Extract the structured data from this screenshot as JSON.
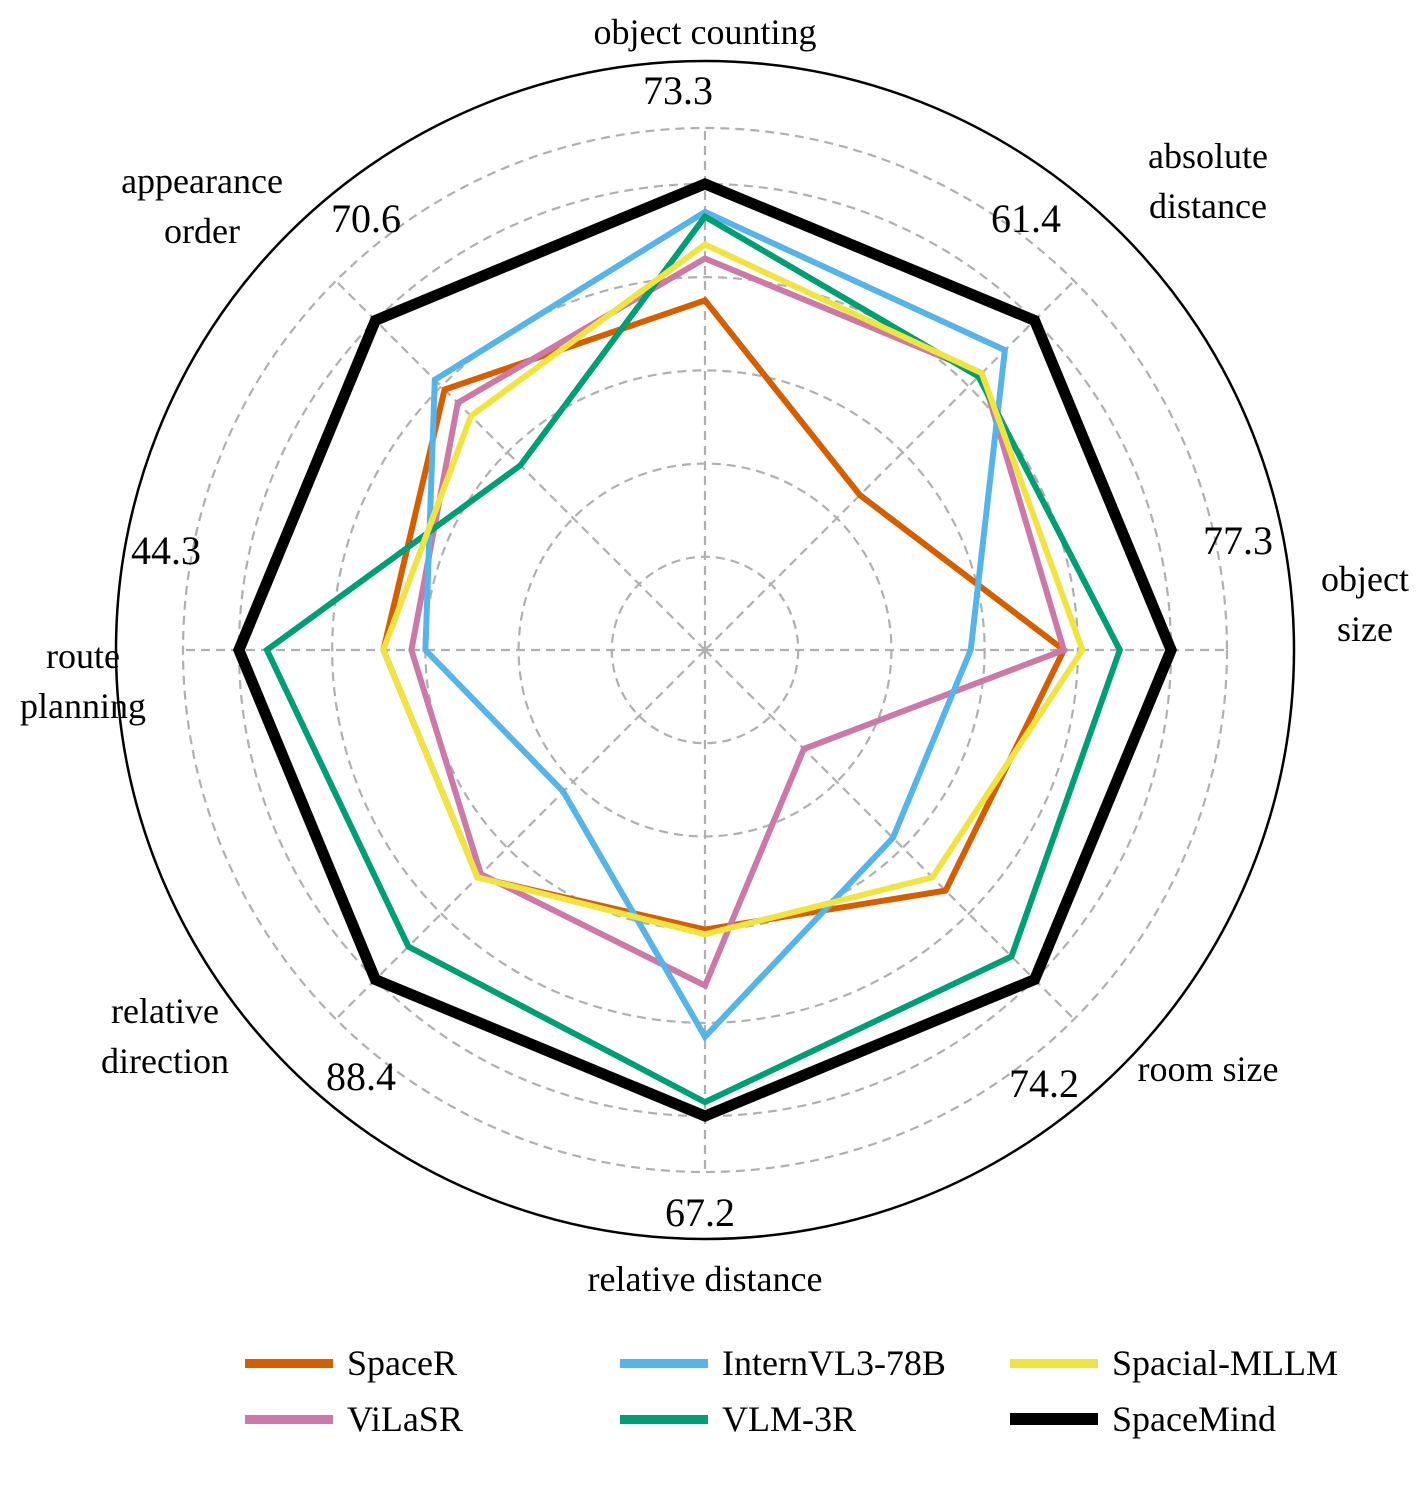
{
  "chart_data": {
    "type": "radar",
    "axes": [
      {
        "name": "object counting",
        "lines": [
          "object counting"
        ],
        "peak": "73.3"
      },
      {
        "name": "absolute distance",
        "lines": [
          "absolute",
          "distance"
        ],
        "peak": "61.4"
      },
      {
        "name": "object size",
        "lines": [
          "object",
          "size"
        ],
        "peak": "77.3"
      },
      {
        "name": "room size",
        "lines": [
          "room size"
        ],
        "peak": "74.2"
      },
      {
        "name": "relative distance",
        "lines": [
          "relative distance"
        ],
        "peak": "67.2"
      },
      {
        "name": "relative direction",
        "lines": [
          "relative",
          "direction"
        ],
        "peak": "88.4"
      },
      {
        "name": "route planning",
        "lines": [
          "route",
          "planning"
        ],
        "peak": "44.3"
      },
      {
        "name": "appearance order",
        "lines": [
          "appearance",
          "order"
        ],
        "peak": "70.6"
      }
    ],
    "scale": "each axis normalized to its best score (SpaceMind = 1.0)",
    "grid_levels": [
      0.2,
      0.4,
      0.6,
      0.8,
      1.0,
      1.12
    ],
    "series": [
      {
        "name": "SpaceR",
        "color": "#D55E00",
        "values": [
          0.75,
          0.47,
          0.77,
          0.73,
          0.6,
          0.69,
          0.69,
          0.79
        ]
      },
      {
        "name": "ViLaSR",
        "color": "#CC79A7",
        "values": [
          0.84,
          0.84,
          0.77,
          0.3,
          0.72,
          0.68,
          0.63,
          0.75
        ]
      },
      {
        "name": "InternVL3-78B",
        "color": "#56B4E9",
        "values": [
          0.94,
          0.91,
          0.57,
          0.57,
          0.83,
          0.43,
          0.6,
          0.82
        ]
      },
      {
        "name": "VLM-3R",
        "color": "#009E73",
        "values": [
          0.93,
          0.83,
          0.89,
          0.93,
          0.97,
          0.9,
          0.94,
          0.56
        ]
      },
      {
        "name": "Spacial-MLLM",
        "color": "#F0E442",
        "values": [
          0.87,
          0.84,
          0.81,
          0.69,
          0.61,
          0.69,
          0.69,
          0.71
        ]
      },
      {
        "name": "SpaceMind",
        "color": "#000000",
        "values": [
          1.0,
          1.0,
          1.0,
          1.0,
          1.0,
          1.0,
          1.0,
          1.0
        ]
      }
    ]
  },
  "legend": {
    "items": [
      {
        "name": "SpaceR",
        "color": "#D55E00"
      },
      {
        "name": "InternVL3-78B",
        "color": "#56B4E9"
      },
      {
        "name": "Spacial-MLLM",
        "color": "#F0E442"
      },
      {
        "name": "ViLaSR",
        "color": "#CC79A7"
      },
      {
        "name": "VLM-3R",
        "color": "#009E73"
      },
      {
        "name": "SpaceMind",
        "color": "#000000"
      }
    ]
  }
}
